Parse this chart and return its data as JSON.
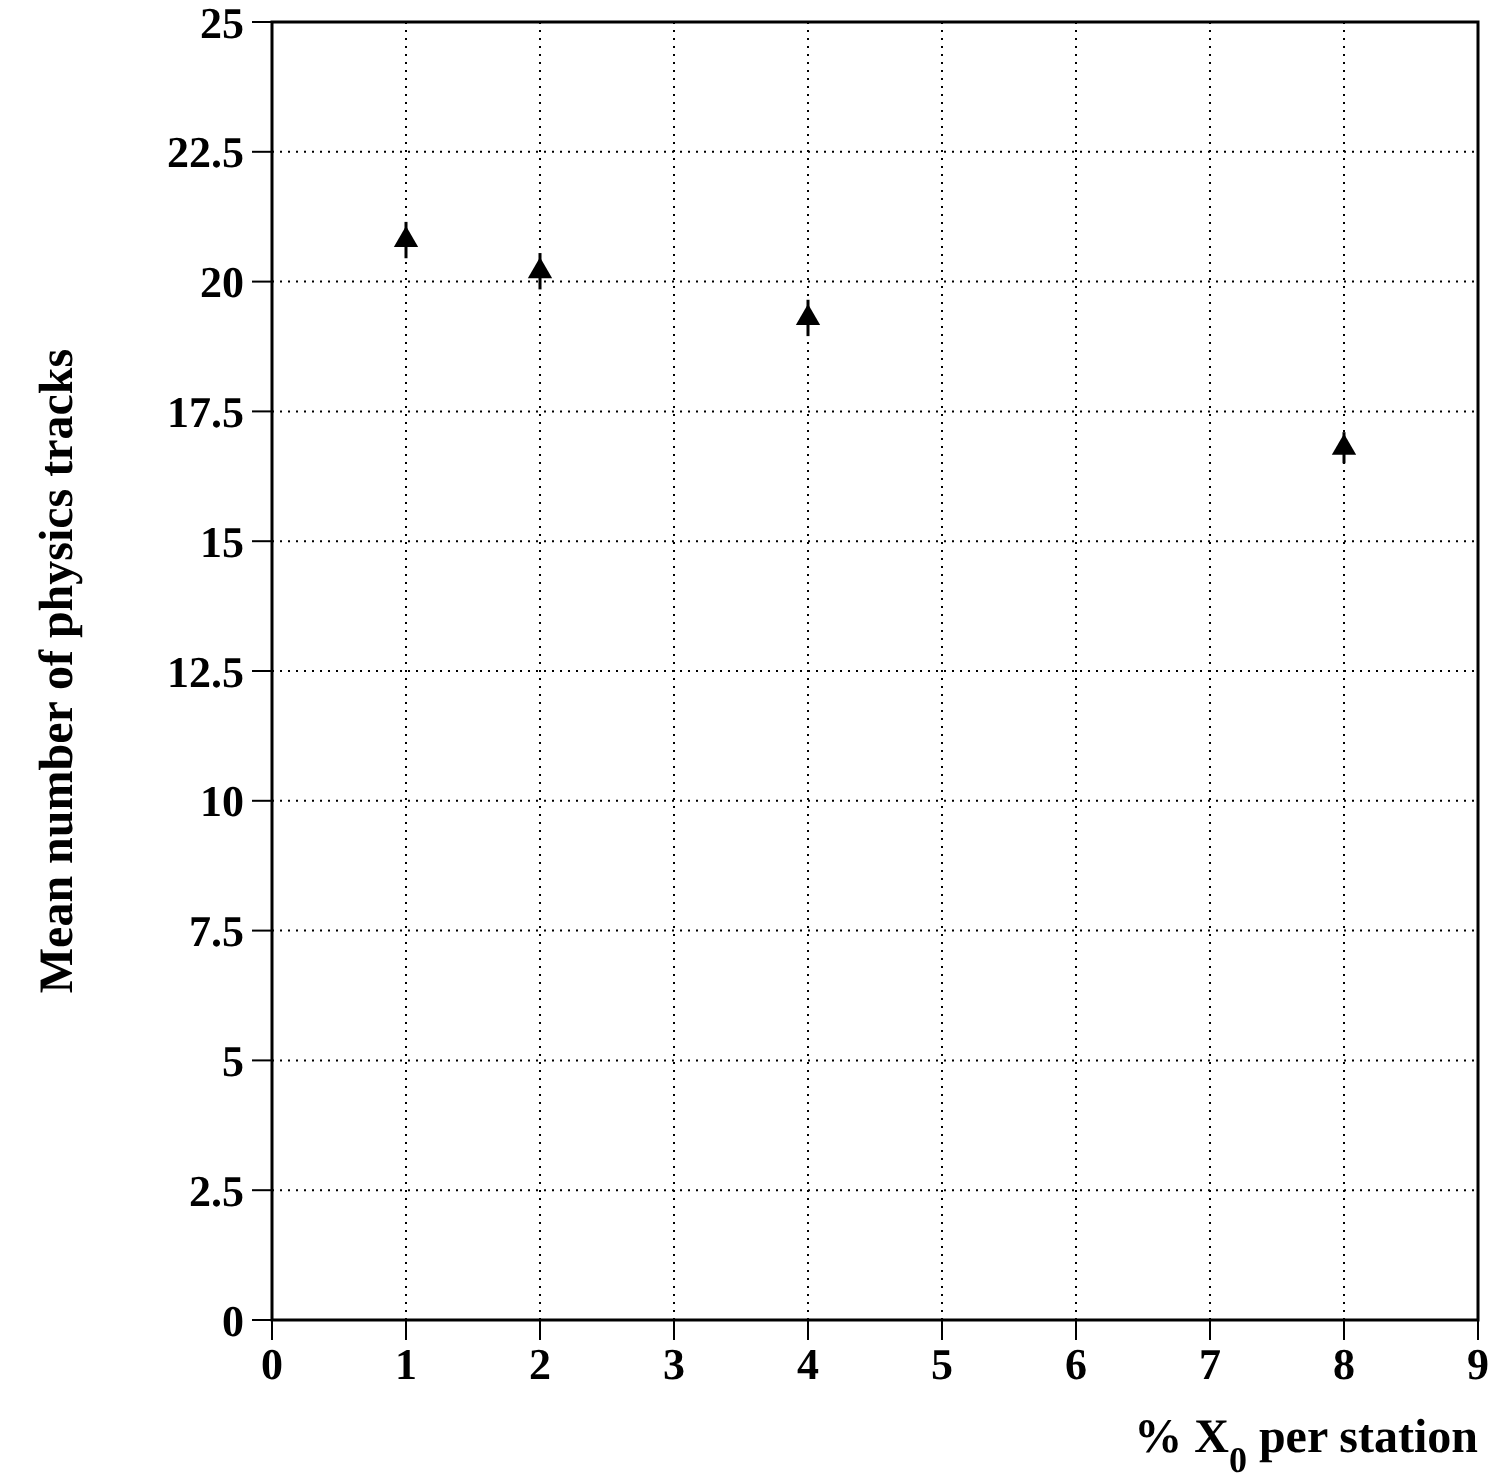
{
  "chart_data": {
    "type": "scatter",
    "xlabel": "% X$_{0}$ per station",
    "ylabel": "Mean number of physics tracks",
    "x": [
      1,
      2,
      4,
      8
    ],
    "series": [
      {
        "color": "#000000",
        "values": [
          20.8,
          20.2,
          19.3,
          16.8
        ],
        "errors": [
          0.35,
          0.35,
          0.35,
          0.3
        ]
      }
    ],
    "marker": "triangle",
    "grid": true,
    "legend": false,
    "xlim": [
      0,
      9
    ],
    "xticks": [
      0,
      1,
      2,
      3,
      4,
      5,
      6,
      7,
      8,
      9
    ],
    "ylim": [
      0,
      25
    ],
    "yticks": [
      0,
      2.5,
      5,
      7.5,
      10,
      12.5,
      15,
      17.5,
      20,
      22.5,
      25
    ]
  }
}
